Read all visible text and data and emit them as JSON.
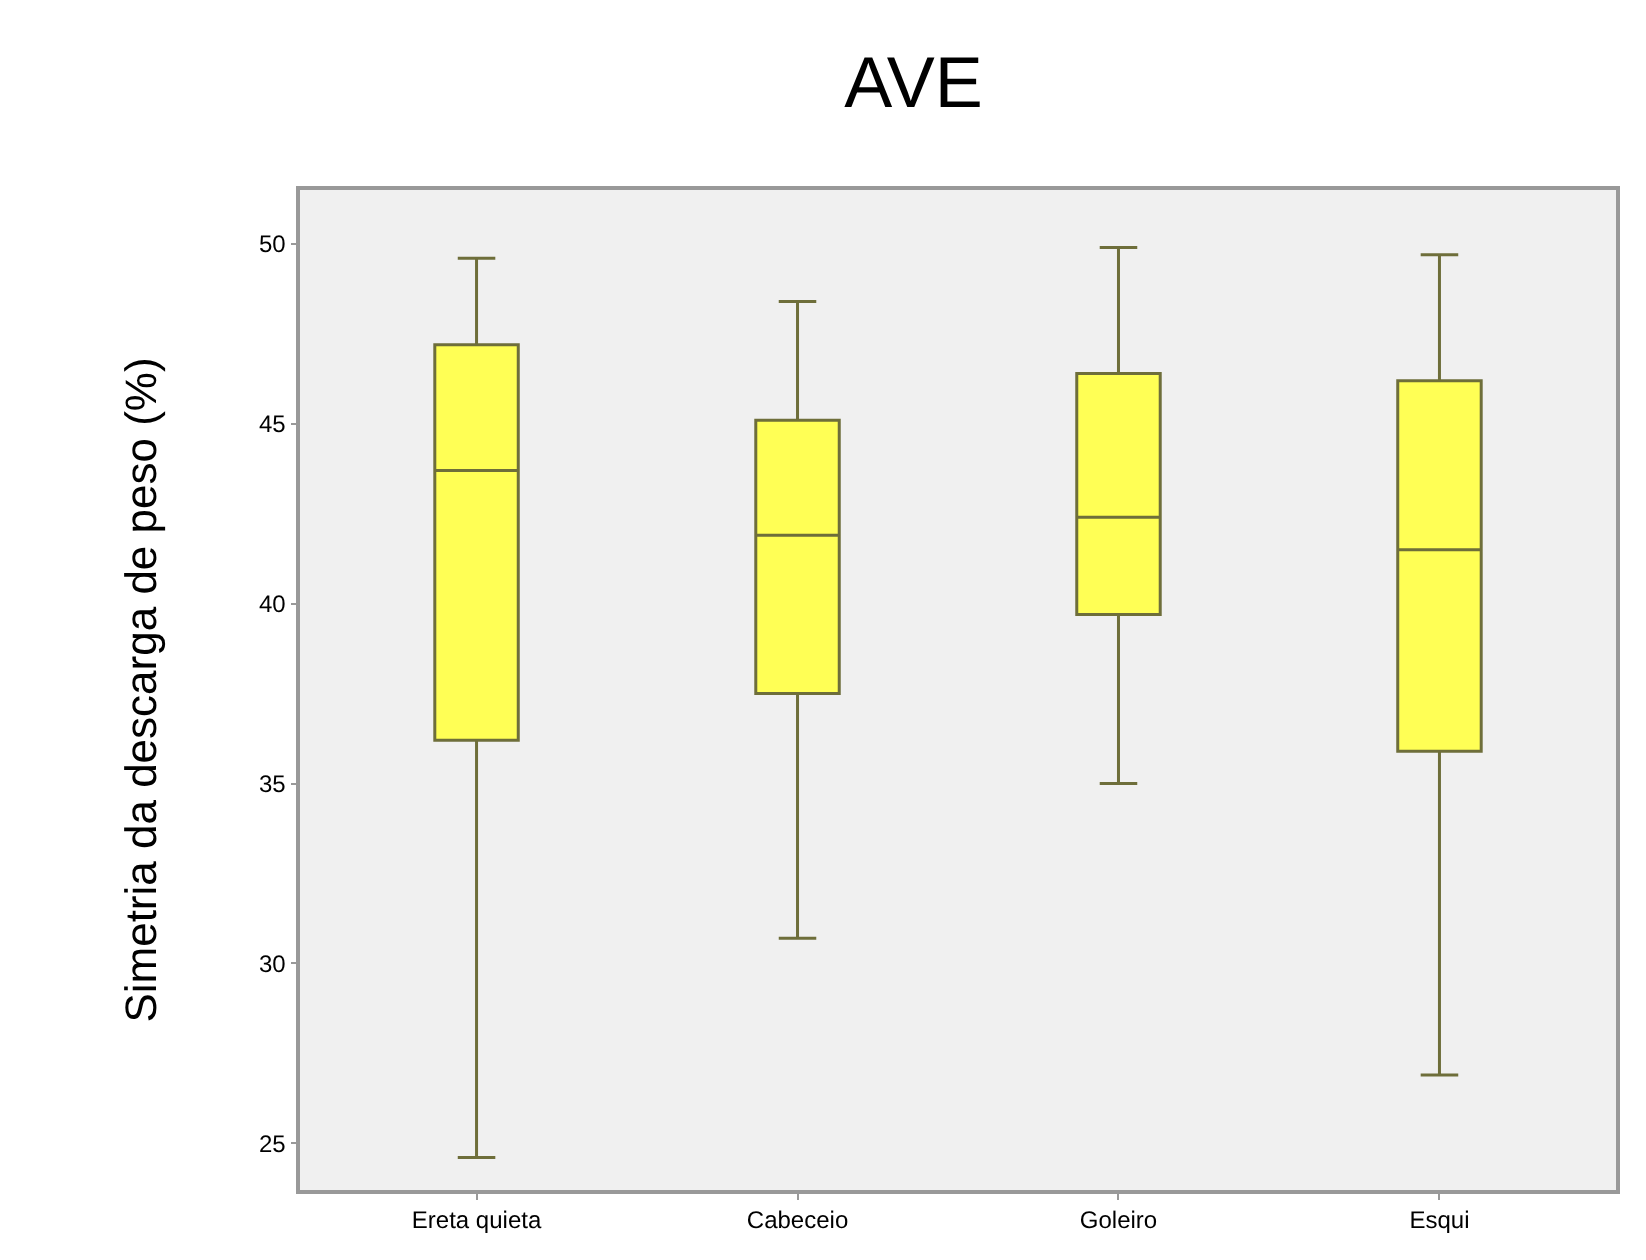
{
  "chart_data": {
    "type": "box",
    "title": "AVE",
    "ylabel": "Simetria da descarga de peso (%)",
    "categories": [
      "Ereta quieta",
      "Cabeceio",
      "Goleiro",
      "Esqui"
    ],
    "series": [
      {
        "color": "#ffff55",
        "boxes": [
          {
            "low": 24.6,
            "q1": 36.2,
            "median": 43.7,
            "q3": 47.2,
            "high": 49.6
          },
          {
            "low": 30.7,
            "q1": 37.5,
            "median": 41.9,
            "q3": 45.1,
            "high": 48.4
          },
          {
            "low": 35.0,
            "q1": 39.7,
            "median": 42.4,
            "q3": 46.4,
            "high": 49.9
          },
          {
            "low": 26.9,
            "q1": 35.9,
            "median": 41.5,
            "q3": 46.2,
            "high": 49.7
          }
        ]
      }
    ],
    "ylim": [
      23.7,
      51.5
    ],
    "yticks": [
      25,
      30,
      35,
      40,
      45,
      50
    ],
    "grid": false
  }
}
